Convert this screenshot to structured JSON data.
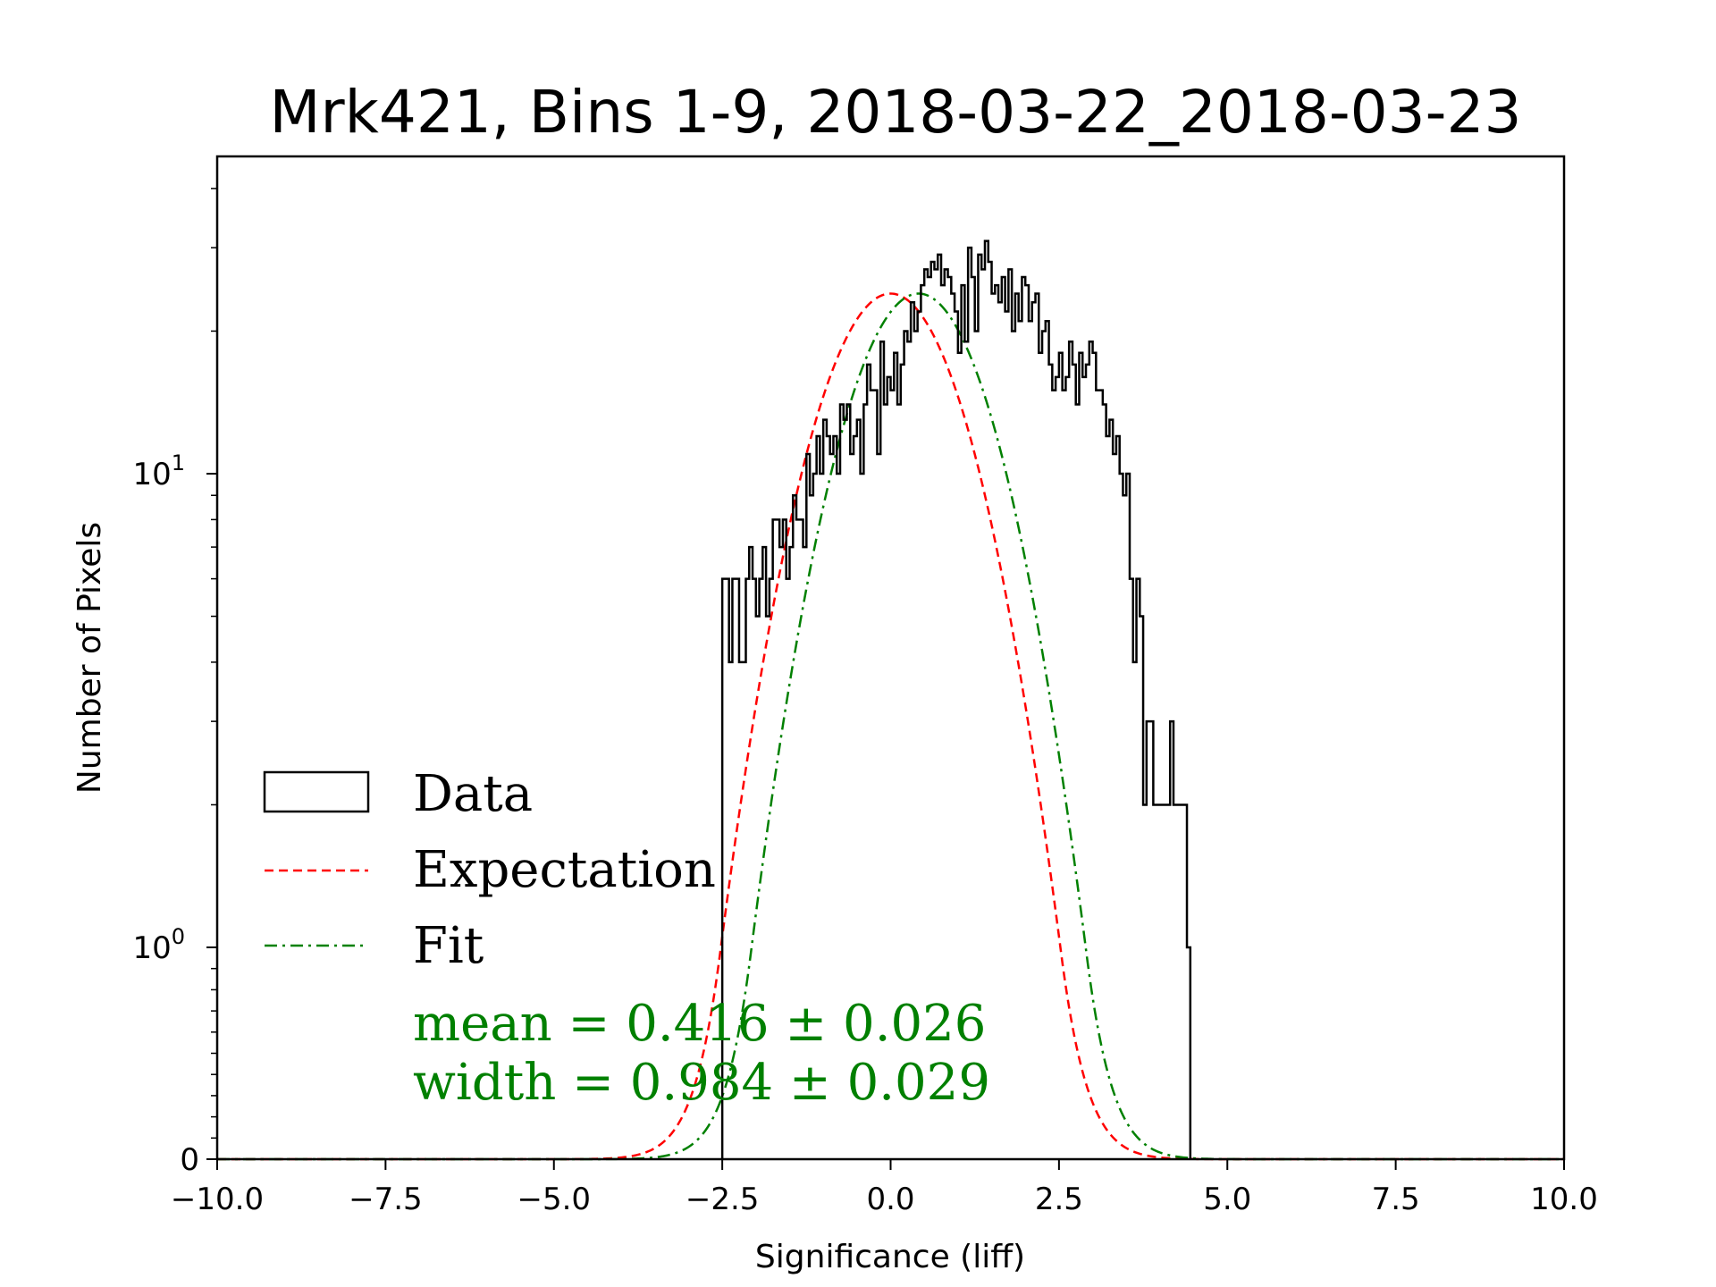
{
  "chart_data": {
    "type": "histogram",
    "title": "Mrk421, Bins 1-9, 2018-03-22_2018-03-23",
    "xlabel": "Significance (liff)",
    "ylabel": "Number of Pixels",
    "xlim": [
      -10,
      10
    ],
    "yscale": "symlog",
    "ylim": [
      0,
      40
    ],
    "xticks": [
      -10,
      -7.5,
      -5,
      -2.5,
      0,
      2.5,
      5,
      7.5,
      10
    ],
    "xtick_labels": [
      "−10.0",
      "−7.5",
      "−5.0",
      "−2.5",
      "0.0",
      "2.5",
      "5.0",
      "7.5",
      "10.0"
    ],
    "yticks": [
      {
        "value": 0,
        "base": "0",
        "exp": ""
      },
      {
        "value": 1,
        "base": "10",
        "exp": "0"
      },
      {
        "value": 10,
        "base": "10",
        "exp": "1"
      }
    ],
    "histogram": {
      "name": "Data",
      "bin_edges_start": -2.5,
      "bin_width": 0.05,
      "counts": [
        6,
        6,
        4,
        6,
        6,
        4,
        4,
        6,
        7,
        6,
        5,
        6,
        7,
        5,
        6,
        8,
        8,
        7,
        8,
        6,
        7,
        9,
        8,
        8,
        7,
        11,
        9,
        10,
        12,
        10,
        13,
        12,
        11,
        12,
        10,
        14,
        13,
        14,
        11,
        12,
        13,
        10,
        14,
        17,
        15,
        15,
        11,
        19,
        14,
        16,
        15,
        18,
        14,
        17,
        20,
        19,
        23,
        20,
        22,
        25,
        27,
        26,
        28,
        27,
        29,
        25,
        27,
        26,
        24,
        22,
        18,
        25,
        19,
        30,
        26,
        20,
        29,
        27,
        31,
        28,
        24,
        25,
        23,
        26,
        22,
        27,
        20,
        24,
        21,
        26,
        25,
        21,
        23,
        24,
        18,
        20,
        21,
        17,
        15,
        16,
        18,
        15,
        16,
        19,
        17,
        14,
        18,
        16,
        17,
        19,
        18,
        15,
        15,
        14,
        12,
        13,
        11,
        12,
        10,
        9,
        10,
        6,
        4,
        6,
        5,
        2,
        3,
        3,
        2,
        2,
        2,
        2,
        2,
        3,
        2,
        2,
        2,
        2,
        1
      ]
    },
    "series": [
      {
        "name": "Expectation",
        "kind": "gaussian",
        "mean": 0.0,
        "width": 1.0,
        "amplitude": 24,
        "color": "#ff0000",
        "style": "dashed"
      },
      {
        "name": "Fit",
        "kind": "gaussian",
        "mean": 0.416,
        "width": 0.984,
        "amplitude": 24,
        "color": "#008000",
        "style": "dashdot"
      }
    ],
    "legend": {
      "position": "lower-left",
      "entries": [
        "Data",
        "Expectation",
        "Fit"
      ]
    },
    "annotations": [
      {
        "text": "mean = 0.416 ± 0.026",
        "color": "#008000"
      },
      {
        "text": "width = 0.984 ± 0.029",
        "color": "#008000"
      }
    ]
  }
}
